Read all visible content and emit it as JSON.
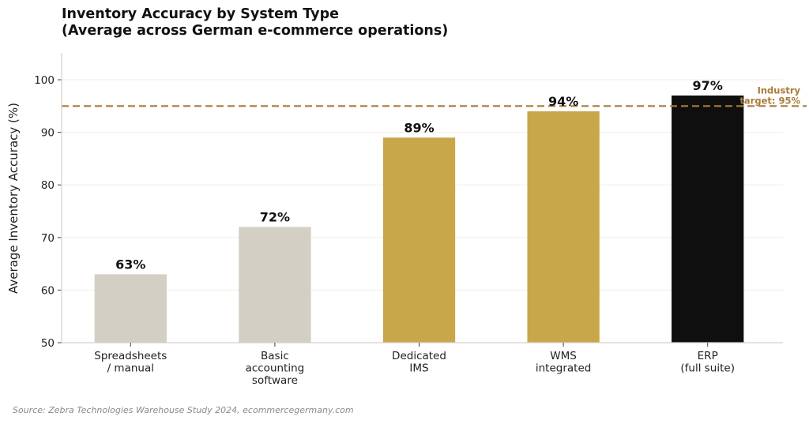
{
  "chart_data": {
    "type": "bar",
    "title_line1": "Inventory Accuracy by System Type",
    "title_line2": "(Average across German e-commerce operations)",
    "xlabel": "",
    "ylabel": "Average Inventory Accuracy (%)",
    "ylim": [
      50,
      105
    ],
    "yticks": [
      50,
      60,
      70,
      80,
      90,
      100
    ],
    "grid": "horizontal",
    "categories": [
      [
        "Spreadsheets",
        "/ manual"
      ],
      [
        "Basic",
        "accounting",
        "software"
      ],
      [
        "Dedicated",
        "IMS"
      ],
      [
        "WMS",
        "integrated"
      ],
      [
        "ERP",
        "(full suite)"
      ]
    ],
    "values": [
      63,
      72,
      89,
      94,
      97
    ],
    "data_labels": [
      "63%",
      "72%",
      "89%",
      "94%",
      "97%"
    ],
    "bar_colors": [
      "#d3cfc4",
      "#d3cfc4",
      "#c8a64a",
      "#c8a64a",
      "#0f0f0f"
    ],
    "reference_line": {
      "value": 95,
      "label_line1": "Industry",
      "label_line2": "target: 95%",
      "color": "#a87c3a",
      "style": "dashed"
    }
  },
  "source": "Source: Zebra Technologies Warehouse Study 2024, ecommercegermany.com"
}
